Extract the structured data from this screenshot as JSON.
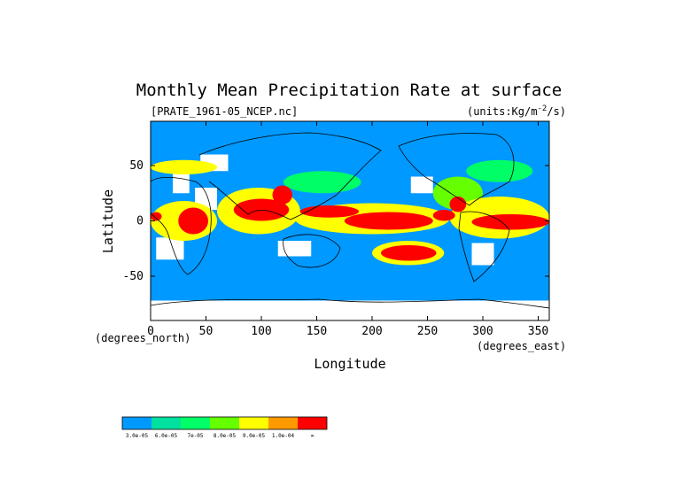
{
  "chart_data": {
    "type": "heatmap",
    "title": "Monthly Mean Precipitation Rate at surface",
    "file_label": "[PRATE_1961-05_NCEP.nc]",
    "units_label": "(units:Kg/m^2/s)",
    "xlabel": "Longitude",
    "ylabel": "Latitude",
    "x_unit_label": "(degrees_east)",
    "y_unit_label": "(degrees_north)",
    "xlim": [
      0,
      360
    ],
    "ylim": [
      -90,
      90
    ],
    "x_ticks": [
      "0",
      "50",
      "100",
      "150",
      "200",
      "250",
      "300",
      "350"
    ],
    "x_tick_values": [
      0,
      50,
      100,
      150,
      200,
      250,
      300,
      350
    ],
    "y_ticks": [
      "50",
      "0",
      "-50"
    ],
    "y_tick_values": [
      50,
      0,
      -50
    ],
    "colorbar": {
      "colors": [
        "#0099ff",
        "#00e0a0",
        "#00ff66",
        "#66ff00",
        "#ffff00",
        "#ff9900",
        "#ff0000"
      ],
      "labels": [
        "3.0e-05",
        "6.0e-05",
        "7e-05",
        "8.0e-05",
        "9.0e-05",
        "1.0e-04",
        "∞"
      ]
    },
    "land_color": "#ffffff",
    "ocean_color": "#0099ff",
    "regions": [
      {
        "level": 6,
        "lon": [
          0,
          10
        ],
        "lat": [
          0,
          8
        ]
      },
      {
        "level": 6,
        "lon": [
          25,
          52
        ],
        "lat": [
          -12,
          12
        ]
      },
      {
        "level": 6,
        "lon": [
          75,
          125
        ],
        "lat": [
          0,
          20
        ]
      },
      {
        "level": 6,
        "lon": [
          110,
          128
        ],
        "lat": [
          15,
          32
        ]
      },
      {
        "level": 6,
        "lon": [
          135,
          188
        ],
        "lat": [
          3,
          14
        ]
      },
      {
        "level": 6,
        "lon": [
          175,
          255
        ],
        "lat": [
          -8,
          8
        ]
      },
      {
        "level": 6,
        "lon": [
          255,
          275
        ],
        "lat": [
          0,
          10
        ]
      },
      {
        "level": 6,
        "lon": [
          290,
          360
        ],
        "lat": [
          -8,
          6
        ]
      },
      {
        "level": 6,
        "lon": [
          208,
          258
        ],
        "lat": [
          -36,
          -22
        ]
      },
      {
        "level": 6,
        "lon": [
          270,
          285
        ],
        "lat": [
          8,
          22
        ]
      },
      {
        "level": 4,
        "lon": [
          0,
          60
        ],
        "lat": [
          -18,
          18
        ]
      },
      {
        "level": 4,
        "lon": [
          60,
          135
        ],
        "lat": [
          -12,
          30
        ]
      },
      {
        "level": 4,
        "lon": [
          130,
          270
        ],
        "lat": [
          -12,
          16
        ]
      },
      {
        "level": 4,
        "lon": [
          270,
          360
        ],
        "lat": [
          -16,
          22
        ]
      },
      {
        "level": 4,
        "lon": [
          200,
          265
        ],
        "lat": [
          -40,
          -18
        ]
      },
      {
        "level": 4,
        "lon": [
          0,
          60
        ],
        "lat": [
          42,
          55
        ]
      },
      {
        "level": 3,
        "lon": [
          255,
          300
        ],
        "lat": [
          10,
          40
        ]
      },
      {
        "level": 2,
        "lon": [
          120,
          190
        ],
        "lat": [
          25,
          45
        ]
      },
      {
        "level": 2,
        "lon": [
          285,
          345
        ],
        "lat": [
          35,
          55
        ]
      }
    ],
    "land": [
      {
        "lon": [
          20,
          35
        ],
        "lat": [
          25,
          45
        ]
      },
      {
        "lon": [
          40,
          60
        ],
        "lat": [
          10,
          30
        ]
      },
      {
        "lon": [
          45,
          70
        ],
        "lat": [
          45,
          60
        ]
      },
      {
        "lon": [
          5,
          30
        ],
        "lat": [
          -35,
          -15
        ]
      },
      {
        "lon": [
          115,
          145
        ],
        "lat": [
          -32,
          -18
        ]
      },
      {
        "lon": [
          235,
          255
        ],
        "lat": [
          25,
          40
        ]
      },
      {
        "lon": [
          290,
          310
        ],
        "lat": [
          -40,
          -20
        ]
      },
      {
        "lon": [
          0,
          360
        ],
        "lat": [
          -90,
          -72
        ]
      }
    ]
  }
}
